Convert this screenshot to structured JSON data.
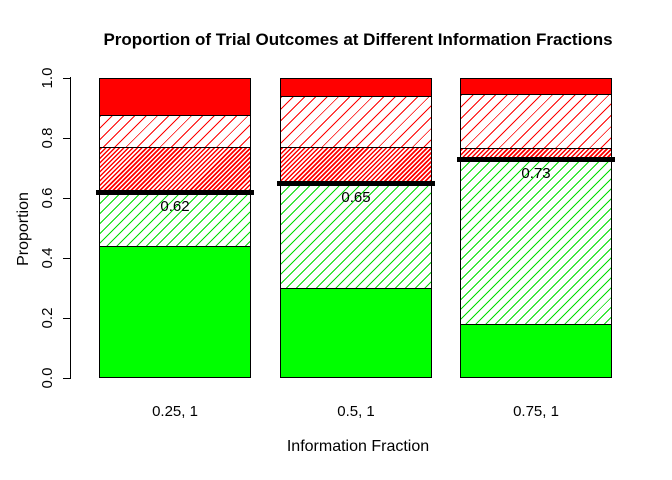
{
  "title": "Proportion of Trial Outcomes at Different Information Fractions",
  "y_axis": {
    "label": "Proportion",
    "ticks": [
      "0.0",
      "0.2",
      "0.4",
      "0.6",
      "0.8",
      "1.0"
    ]
  },
  "x_axis": {
    "label": "Information Fraction"
  },
  "colors": {
    "success_green": "#00FF00",
    "failure_red": "#FF0000",
    "threshold_line": "#000000",
    "background": "#FFFFFF"
  },
  "chart_data": {
    "type": "bar",
    "stacked": true,
    "title": "Proportion of Trial Outcomes at Different Information Fractions",
    "xlabel": "Information Fraction",
    "ylabel": "Proportion",
    "ylim": [
      0,
      1
    ],
    "y_ticks": [
      0.0,
      0.2,
      0.4,
      0.6,
      0.8,
      1.0
    ],
    "grid": false,
    "legend": null,
    "categories": [
      "0.25, 1",
      "0.5, 1",
      "0.75, 1"
    ],
    "series": [
      {
        "name": "success solid green",
        "fill": "solid-green",
        "values": [
          0.44,
          0.3,
          0.18
        ]
      },
      {
        "name": "success hatched green",
        "fill": "hatched-green",
        "values": [
          0.18,
          0.35,
          0.55
        ]
      },
      {
        "name": "failure dense hatched red",
        "fill": "dense-hatched-red",
        "values": [
          0.15,
          0.12,
          0.035
        ]
      },
      {
        "name": "failure hatched red",
        "fill": "hatched-red",
        "values": [
          0.105,
          0.17,
          0.18
        ]
      },
      {
        "name": "failure solid red",
        "fill": "solid-red",
        "values": [
          0.125,
          0.06,
          0.055
        ]
      }
    ],
    "threshold_lines": [
      {
        "category": "0.25, 1",
        "value": 0.62,
        "label": "0.62"
      },
      {
        "category": "0.5, 1",
        "value": 0.65,
        "label": "0.65"
      },
      {
        "category": "0.75, 1",
        "value": 0.73,
        "label": "0.73"
      }
    ]
  }
}
